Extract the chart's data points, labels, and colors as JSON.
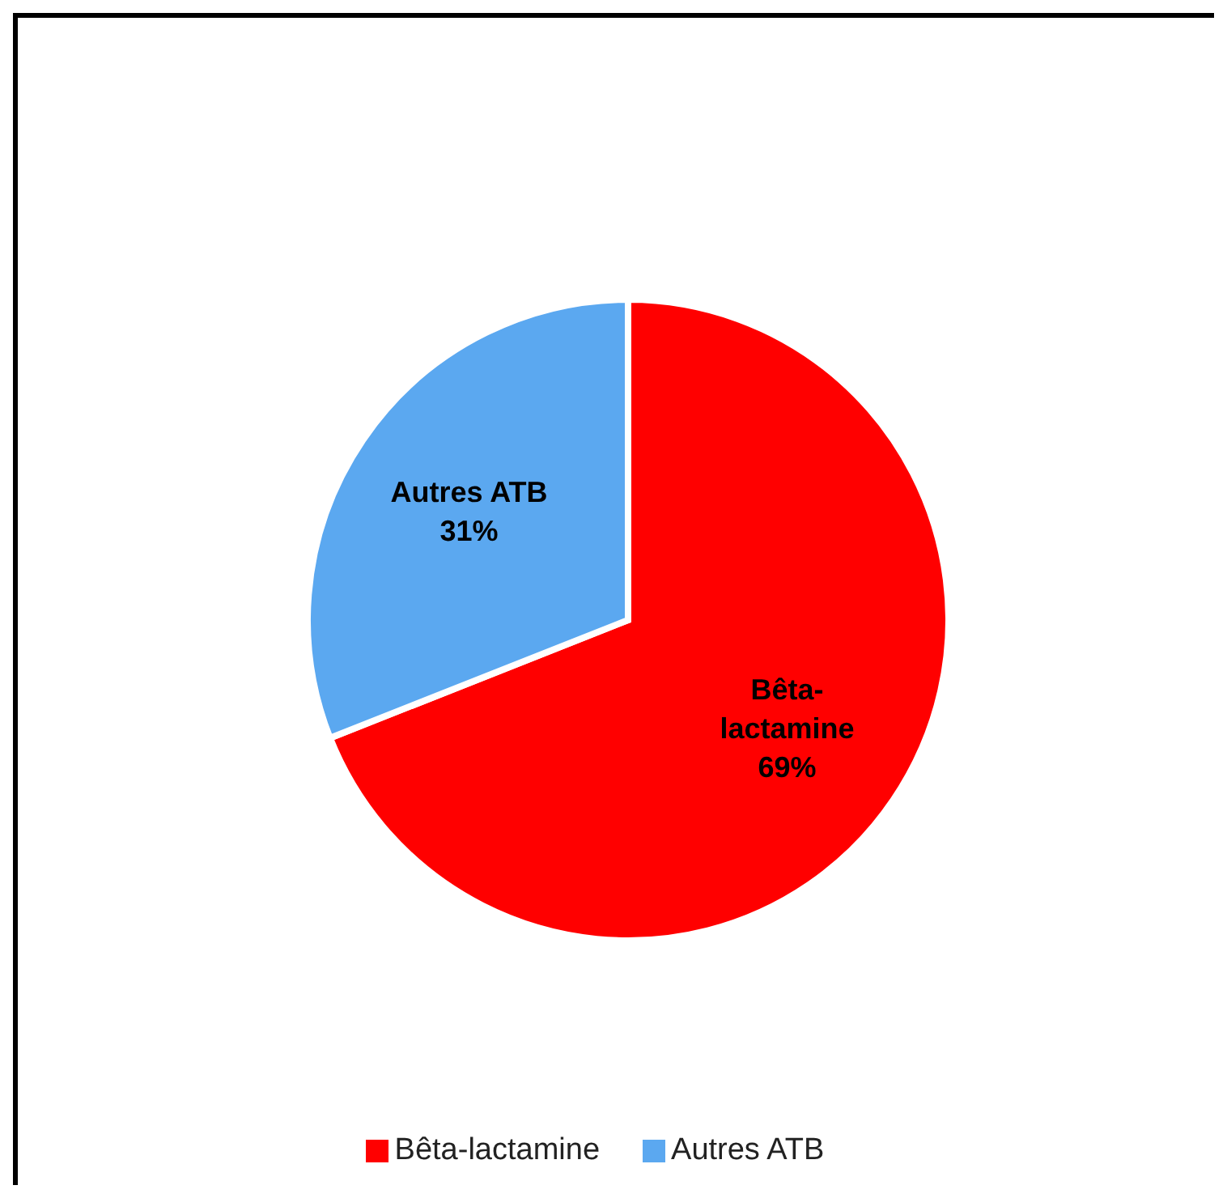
{
  "chart_data": {
    "type": "pie",
    "categories": [
      "Bêta-lactamine",
      "Autres ATB"
    ],
    "values": [
      69,
      31
    ],
    "colors": [
      "#ff0000",
      "#5ba8f0"
    ],
    "value_labels": [
      "69%",
      "31%"
    ],
    "legend": "bottom"
  }
}
